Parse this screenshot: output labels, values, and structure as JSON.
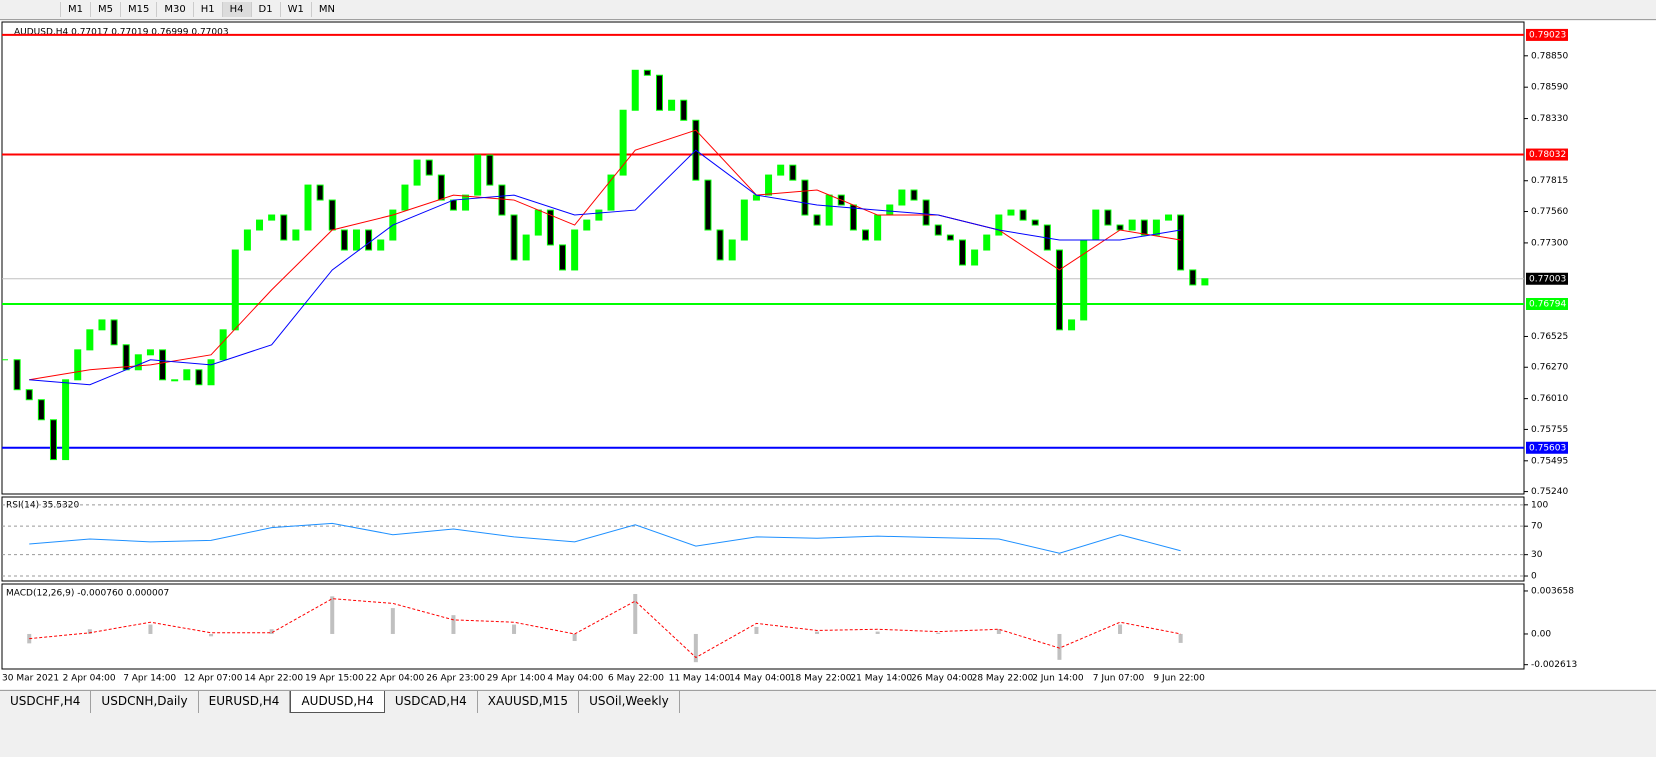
{
  "toolbar": {
    "timeframes": [
      "M1",
      "M5",
      "M15",
      "M30",
      "H1",
      "H4",
      "D1",
      "W1",
      "MN"
    ],
    "active": "H4"
  },
  "chart_data": [
    {
      "type": "candlestick",
      "title": "AUDUSD,H4  0.77017 0.77019 0.76999 0.77003",
      "color": "#00ff00",
      "values": [
        0.76332,
        0.76084,
        0.76001,
        0.75835,
        0.75505,
        0.76166,
        0.76414,
        0.7658,
        0.76662,
        0.76456,
        0.76249,
        0.76373,
        0.76414,
        0.76166,
        0.76166,
        0.76249,
        0.76125,
        0.76332,
        0.7658,
        0.77241,
        0.77407,
        0.77489,
        0.77531,
        0.77324,
        0.77407,
        0.77779,
        0.77655,
        0.77407,
        0.77241,
        0.77407,
        0.77241,
        0.77324,
        0.77572,
        0.77779,
        0.77986,
        0.77862,
        0.77655,
        0.77572,
        0.77696,
        0.78027,
        0.77779,
        0.77531,
        0.77159,
        0.77365,
        0.77572,
        0.77283,
        0.77076,
        0.77407,
        0.77489,
        0.77572,
        0.77862,
        0.78399,
        0.7873,
        0.78689,
        0.78399,
        0.78482,
        0.78316,
        0.7782,
        0.77407,
        0.77159,
        0.77324,
        0.77655,
        0.77696,
        0.77862,
        0.77944,
        0.7782,
        0.77531,
        0.77448,
        0.77696,
        0.77614,
        0.77407,
        0.77324,
        0.77531,
        0.77614,
        0.77738,
        0.77655,
        0.77448,
        0.77365,
        0.77324,
        0.77117,
        0.77241,
        0.77365,
        0.77531,
        0.77572,
        0.77489,
        0.77448,
        0.77241,
        0.7658,
        0.76662,
        0.77324,
        0.77572,
        0.77448,
        0.77407,
        0.77489,
        0.77365,
        0.77489,
        0.77531,
        0.77076,
        0.76952,
        0.77003
      ],
      "series": [
        {
          "color": "#ff0000",
          "values": [
            0.76166,
            0.76249,
            0.7629,
            0.76373,
            0.76911,
            0.77407,
            0.77531,
            0.77696,
            0.77655,
            0.77448,
            0.78068,
            0.78234,
            0.77696,
            0.77738,
            0.77531,
            0.77531,
            0.77407,
            0.77076,
            0.77407,
            0.77324
          ]
        },
        {
          "color": "#0000ff",
          "values": [
            0.76166,
            0.76125,
            0.76332,
            0.7629,
            0.76456,
            0.77076,
            0.77448,
            0.77655,
            0.77696,
            0.77531,
            0.77572,
            0.78068,
            0.77696,
            0.77614,
            0.77572,
            0.77531,
            0.77407,
            0.77324,
            0.77324,
            0.77407
          ]
        }
      ],
      "ylim": [
        0.7522,
        0.7913
      ],
      "yticks": [
        {
          "value": 0.7885,
          "label": "0.78850"
        },
        {
          "value": 0.7859,
          "label": "0.78590"
        },
        {
          "value": 0.7833,
          "label": "0.78330"
        },
        {
          "value": 0.77815,
          "label": "0.77815"
        },
        {
          "value": 0.7756,
          "label": "0.77560"
        },
        {
          "value": 0.773,
          "label": "0.77300"
        },
        {
          "value": 0.76525,
          "label": "0.76525"
        },
        {
          "value": 0.7627,
          "label": "0.76270"
        },
        {
          "value": 0.7601,
          "label": "0.76010"
        },
        {
          "value": 0.75755,
          "label": "0.75755"
        },
        {
          "value": 0.75495,
          "label": "0.75495"
        },
        {
          "value": 0.7524,
          "label": "0.75240"
        }
      ],
      "levels": [
        {
          "value": 0.79023,
          "color": "#ff0000"
        },
        {
          "value": 0.78032,
          "color": "#ff0000"
        },
        {
          "value": 0.77003,
          "color": "#c0c0c0"
        },
        {
          "value": 0.76794,
          "color": "#00ff00"
        },
        {
          "value": 0.75603,
          "color": "#0000ff"
        }
      ],
      "x_labels": [
        "30 Mar 2021",
        "2 Apr 04:00",
        "7 Apr 14:00",
        "12 Apr 07:00",
        "14 Apr 22:00",
        "19 Apr 15:00",
        "22 Apr 04:00",
        "26 Apr 23:00",
        "29 Apr 14:00",
        "4 May 04:00",
        "6 May 22:00",
        "11 May 14:00",
        "14 May 04:00",
        "18 May 22:00",
        "21 May 14:00",
        "26 May 04:00",
        "28 May 22:00",
        "2 Jun 14:00",
        "7 Jun 07:00",
        "9 Jun 22:00"
      ]
    },
    {
      "type": "line",
      "title": "RSI(14) 35.5320",
      "color": "#1e90ff",
      "values": [
        45,
        52,
        48,
        50,
        68,
        74,
        58,
        66,
        55,
        48,
        72,
        42,
        55,
        53,
        56,
        54,
        52,
        32,
        58,
        35.532
      ],
      "ylim": [
        -7,
        111
      ],
      "yticks": [
        100,
        70,
        30,
        0
      ]
    },
    {
      "type": "macd",
      "title": "MACD(12,26,9) -0.000760 0.000007",
      "color": "#c0c0c0",
      "signal_color": "#ff0000",
      "values": [
        -0.0008,
        0.0004,
        0.0008,
        -0.0002,
        0.0004,
        0.0032,
        0.0022,
        0.0016,
        0.0008,
        -0.0006,
        0.0034,
        -0.0024,
        0.0006,
        0.0002,
        0.0002,
        0.0001,
        0.0004,
        -0.0022,
        0.0008,
        -0.00076
      ],
      "signal": [
        -0.0004,
        0.0001,
        0.001,
        0.0001,
        0.0001,
        0.003,
        0.0026,
        0.0012,
        0.001,
        0,
        0.0028,
        -0.002,
        0.0009,
        0.0003,
        0.0004,
        0.0002,
        0.0004,
        -0.0012,
        0.001,
        7e-06
      ],
      "ylim": [
        -0.00298,
        0.00425
      ],
      "yticks": [
        0.003658,
        {
          "value": 0,
          "label": "0.00"
        },
        -0.002613
      ]
    }
  ],
  "tabs": [
    "USDCHF,H4",
    "USDCNH,Daily",
    "EURUSD,H4",
    "AUDUSD,H4",
    "USDCAD,H4",
    "XAUUSD,M15",
    "USOil,Weekly"
  ],
  "active_tab": "AUDUSD,H4"
}
